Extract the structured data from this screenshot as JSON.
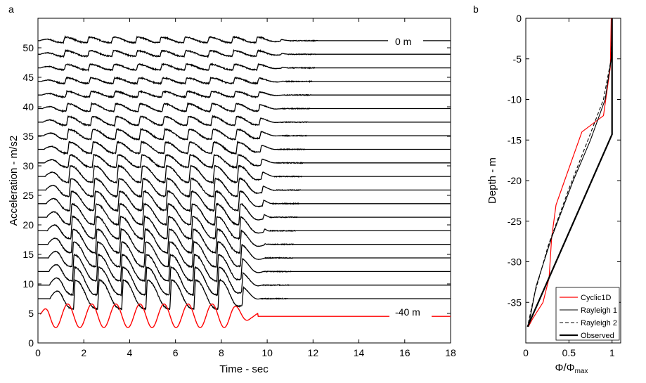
{
  "chart_data": [
    {
      "panel_label": "a",
      "type": "line",
      "xlabel": "Time - sec",
      "ylabel": "Acceleration - m/s2",
      "xlim": [
        0,
        18
      ],
      "ylim": [
        0,
        55
      ],
      "xticks": [
        0,
        2,
        4,
        6,
        8,
        10,
        12,
        14,
        16,
        18
      ],
      "yticks": [
        0,
        5,
        10,
        15,
        20,
        25,
        30,
        35,
        40,
        45,
        50
      ],
      "annotations": [
        "0 m",
        "-40 m"
      ],
      "series_count": 20,
      "baseline_offsets": [
        51.2,
        48.9,
        46.6,
        44.3,
        42.0,
        39.7,
        37.4,
        35.1,
        32.8,
        30.5,
        28.2,
        25.9,
        23.6,
        21.3,
        19.0,
        16.7,
        14.4,
        12.1,
        9.8,
        7.5
      ],
      "input_motion": {
        "color": "#ff0000",
        "baseline": 4.5,
        "amplitude": 2.0,
        "period_sec": 1.05,
        "cycles": 9,
        "end_sec": 10
      },
      "grid": false
    },
    {
      "panel_label": "b",
      "type": "line",
      "xlabel": "Φ/Φmax",
      "xlabel_main": "Φ/Φ",
      "xlabel_sub": "max",
      "ylabel": "Depth - m",
      "xlim": [
        0,
        1.1
      ],
      "ylim": [
        -40,
        0
      ],
      "xticks": [
        0,
        0.5,
        1
      ],
      "xtick_labels": [
        "0",
        "0.5",
        "1"
      ],
      "yticks": [
        0,
        -5,
        -10,
        -15,
        -20,
        -25,
        -30,
        -35
      ],
      "legend_position": "bottom-right",
      "series": [
        {
          "name": "Cyclic1D",
          "color": "#ff0000",
          "width": 1.2,
          "dash": "",
          "x": [
            0.99,
            0.98,
            0.9,
            0.65,
            0.55,
            0.45,
            0.35,
            0.3,
            0.27,
            0.2,
            0.08,
            0.03
          ],
          "y": [
            0,
            -6,
            -12,
            -14,
            -17,
            -20,
            -23,
            -27,
            -32,
            -35,
            -37,
            -38
          ]
        },
        {
          "name": "Rayleigh 1",
          "color": "#000000",
          "width": 1.1,
          "dash": "",
          "x": [
            1.0,
            0.99,
            0.92,
            0.75,
            0.55,
            0.3,
            0.12,
            0.03
          ],
          "y": [
            0,
            -5,
            -10,
            -15,
            -20,
            -27,
            -33,
            -38
          ]
        },
        {
          "name": "Rayleigh 2",
          "color": "#000000",
          "width": 1.1,
          "dash": "5,3",
          "x": [
            1.0,
            0.99,
            0.9,
            0.72,
            0.5,
            0.26,
            0.1,
            0.02
          ],
          "y": [
            0,
            -5,
            -10,
            -15,
            -21,
            -28,
            -34,
            -38
          ]
        },
        {
          "name": "Observed",
          "color": "#000000",
          "width": 2.2,
          "dash": "",
          "x": [
            1.0,
            1.0,
            0.02
          ],
          "y": [
            0,
            -14.3,
            -38
          ]
        }
      ]
    }
  ]
}
